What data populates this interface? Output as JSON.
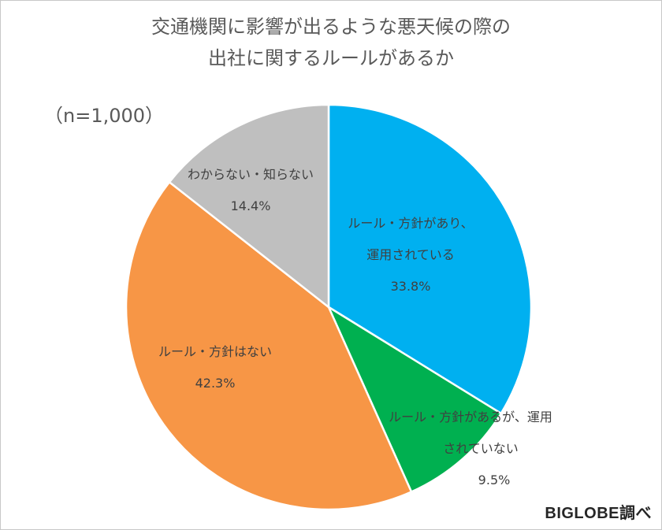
{
  "chart_title_line1": "交通機関に影響が出るような悪天候の際の",
  "chart_title_line2": "出社に関するルールがあるか",
  "sample_size": "（n=1,000）",
  "source": "BIGLOBE調べ",
  "chart_data": {
    "type": "pie",
    "title": "交通機関に影響が出るような悪天候の際の出社に関するルールがあるか",
    "start_angle_deg": 0,
    "direction": "clockwise",
    "slices": [
      {
        "label_line1": "ルール・方針があり、",
        "label_line2": "運用されている",
        "value": 33.8,
        "value_label": "33.8%",
        "color": "#00B0F0"
      },
      {
        "label_line1": "ルール・方針があるが、運用",
        "label_line2": "されていない",
        "value": 9.5,
        "value_label": "9.5%",
        "color": "#00B050"
      },
      {
        "label_line1": "ルール・方針はない",
        "label_line2": "",
        "value": 42.3,
        "value_label": "42.3%",
        "color": "#F79646"
      },
      {
        "label_line1": "わからない・知らない",
        "label_line2": "",
        "value": 14.4,
        "value_label": "14.4%",
        "color": "#BFBFBF"
      }
    ]
  }
}
